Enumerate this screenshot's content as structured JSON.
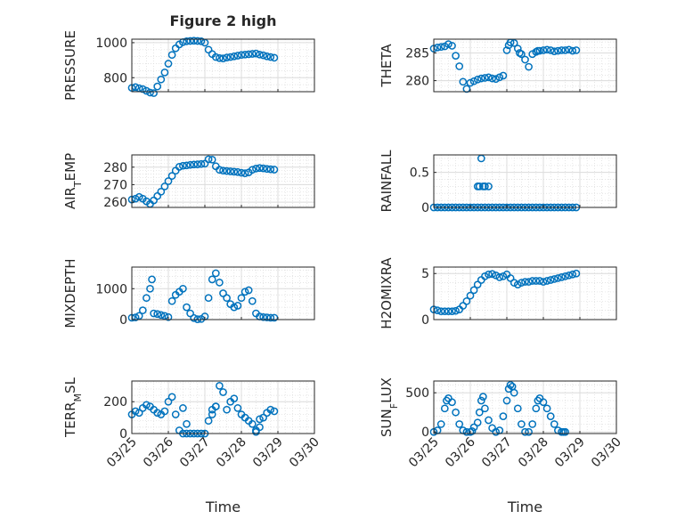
{
  "title": "Figure 2 high",
  "xlabel": "Time",
  "xtick_labels": [
    "03/25",
    "03/26",
    "03/27",
    "03/28",
    "03/29",
    "03/30"
  ],
  "colors": {
    "marker": "#0072BD",
    "grid": "#dcdcdc",
    "axis": "#262626"
  },
  "chart_data": [
    {
      "type": "scatter",
      "ylabel": "PRESSURE",
      "ylabel_parts": [
        [
          "PRESSURE",
          ""
        ]
      ],
      "ylim": [
        720,
        1020
      ],
      "yticks": [
        800,
        1000
      ],
      "ytick_labels": [
        "800",
        "1000"
      ],
      "x": [
        0,
        0.1,
        0.2,
        0.3,
        0.4,
        0.5,
        0.6,
        0.7,
        0.8,
        0.9,
        1.0,
        1.1,
        1.2,
        1.3,
        1.4,
        1.5,
        1.6,
        1.7,
        1.8,
        1.9,
        2.0,
        2.1,
        2.2,
        2.3,
        2.4,
        2.5,
        2.6,
        2.7,
        2.8,
        2.9,
        3.0,
        3.1,
        3.2,
        3.3,
        3.4,
        3.5,
        3.6,
        3.7,
        3.8,
        3.9
      ],
      "y": [
        742,
        746,
        740,
        735,
        725,
        715,
        712,
        750,
        790,
        830,
        880,
        930,
        968,
        990,
        1003,
        1008,
        1010,
        1011,
        1010,
        1008,
        1000,
        960,
        935,
        918,
        912,
        910,
        915,
        918,
        922,
        926,
        930,
        932,
        934,
        936,
        938,
        932,
        928,
        922,
        918,
        914
      ]
    },
    {
      "type": "scatter",
      "ylabel": "THETA",
      "ylabel_parts": [
        [
          "THETA",
          ""
        ]
      ],
      "ylim": [
        278,
        287.5
      ],
      "yticks": [
        280,
        285
      ],
      "ytick_labels": [
        "280",
        "285"
      ],
      "x": [
        0,
        0.1,
        0.2,
        0.3,
        0.4,
        0.5,
        0.6,
        0.7,
        0.8,
        0.9,
        1.0,
        1.1,
        1.2,
        1.3,
        1.4,
        1.5,
        1.6,
        1.7,
        1.8,
        1.9,
        2.0,
        2.05,
        2.1,
        2.2,
        2.3,
        2.35,
        2.4,
        2.5,
        2.6,
        2.7,
        2.8,
        2.85,
        2.9,
        3.0,
        3.1,
        3.2,
        3.3,
        3.4,
        3.5,
        3.6,
        3.7,
        3.8,
        3.9
      ],
      "y": [
        285.8,
        286,
        286.1,
        286.2,
        286.6,
        286.3,
        284.5,
        282.6,
        279.8,
        278.5,
        279.6,
        279.9,
        280.2,
        280.4,
        280.5,
        280.6,
        280.4,
        280.3,
        280.6,
        280.9,
        285.5,
        286.4,
        286.9,
        286.8,
        285.8,
        285.0,
        284.8,
        283.8,
        282.5,
        284.8,
        285.2,
        285.4,
        285.4,
        285.5,
        285.6,
        285.5,
        285.3,
        285.4,
        285.5,
        285.5,
        285.6,
        285.4,
        285.5
      ]
    },
    {
      "type": "scatter",
      "ylabel": "AIR_TEMP",
      "ylabel_parts": [
        [
          "AIR",
          ""
        ],
        [
          "T",
          "sub"
        ],
        [
          "EMP",
          ""
        ]
      ],
      "ylim": [
        257,
        287
      ],
      "yticks": [
        260,
        270,
        280
      ],
      "ytick_labels": [
        "260",
        "270",
        "280"
      ],
      "x": [
        0,
        0.1,
        0.2,
        0.3,
        0.4,
        0.5,
        0.6,
        0.7,
        0.8,
        0.9,
        1.0,
        1.1,
        1.2,
        1.3,
        1.4,
        1.5,
        1.6,
        1.7,
        1.8,
        1.9,
        2.0,
        2.1,
        2.2,
        2.3,
        2.4,
        2.5,
        2.6,
        2.7,
        2.8,
        2.9,
        3.0,
        3.1,
        3.2,
        3.3,
        3.4,
        3.5,
        3.6,
        3.7,
        3.8,
        3.9
      ],
      "y": [
        261.5,
        262,
        263,
        262,
        260.5,
        259,
        261,
        263.5,
        266,
        269,
        272,
        275,
        278,
        280.2,
        280.8,
        281,
        281.3,
        281.5,
        281.6,
        281.8,
        282,
        284.5,
        284.3,
        280.5,
        278.5,
        278.0,
        277.8,
        277.6,
        277.4,
        277.2,
        276.8,
        276.5,
        277.0,
        278.5,
        279.2,
        279.5,
        279.3,
        279.0,
        278.8,
        278.6
      ]
    },
    {
      "type": "scatter",
      "ylabel": "RAINFALL",
      "ylabel_parts": [
        [
          "RAINFALL",
          ""
        ]
      ],
      "ylim": [
        0,
        0.75
      ],
      "yticks": [
        0,
        0.5
      ],
      "ytick_labels": [
        "0",
        "0.5"
      ],
      "x": [
        0,
        0.1,
        0.2,
        0.3,
        0.4,
        0.5,
        0.6,
        0.7,
        0.8,
        0.9,
        1.0,
        1.1,
        1.2,
        1.3,
        1.4,
        1.5,
        1.6,
        1.7,
        1.8,
        1.9,
        2.0,
        2.1,
        2.2,
        2.3,
        2.4,
        2.5,
        2.6,
        2.7,
        2.8,
        2.9,
        3.0,
        3.1,
        3.2,
        3.3,
        3.4,
        3.5,
        3.6,
        3.7,
        3.8,
        3.9,
        1.2,
        1.25,
        1.3,
        1.35,
        1.4,
        1.5
      ],
      "y": [
        0,
        0,
        0,
        0,
        0,
        0,
        0,
        0,
        0,
        0,
        0,
        0,
        0,
        0,
        0,
        0,
        0,
        0,
        0,
        0,
        0,
        0,
        0,
        0,
        0,
        0,
        0,
        0,
        0,
        0,
        0,
        0,
        0,
        0,
        0,
        0,
        0,
        0,
        0,
        0,
        0.3,
        0.3,
        0.7,
        0.3,
        0.3,
        0.3
      ]
    },
    {
      "type": "scatter",
      "ylabel": "MIXDEPTH",
      "ylabel_parts": [
        [
          "MIXDEPTH",
          ""
        ]
      ],
      "ylim": [
        0,
        1700
      ],
      "yticks": [
        0,
        1000
      ],
      "ytick_labels": [
        "0",
        "1000"
      ],
      "x": [
        0,
        0.1,
        0.2,
        0.3,
        0.4,
        0.5,
        0.55,
        0.6,
        0.7,
        0.8,
        0.9,
        1.0,
        1.1,
        1.2,
        1.3,
        1.4,
        1.5,
        1.6,
        1.7,
        1.8,
        1.9,
        2.0,
        2.1,
        2.2,
        2.3,
        2.4,
        2.5,
        2.6,
        2.7,
        2.8,
        2.9,
        3.0,
        3.1,
        3.2,
        3.3,
        3.4,
        3.5,
        3.6,
        3.7,
        3.8,
        3.9
      ],
      "y": [
        60,
        70,
        120,
        300,
        700,
        1000,
        1300,
        200,
        180,
        150,
        120,
        80,
        600,
        800,
        900,
        1000,
        400,
        200,
        50,
        10,
        20,
        100,
        700,
        1300,
        1500,
        1200,
        850,
        700,
        500,
        400,
        450,
        700,
        900,
        950,
        600,
        200,
        100,
        80,
        70,
        60,
        60
      ]
    },
    {
      "type": "scatter",
      "ylabel": "H2OMIXRA",
      "ylabel_parts": [
        [
          "H2OMIXRA",
          ""
        ]
      ],
      "ylim": [
        0,
        5.7
      ],
      "yticks": [
        0,
        5
      ],
      "ytick_labels": [
        "0",
        "5"
      ],
      "x": [
        0,
        0.1,
        0.2,
        0.3,
        0.4,
        0.5,
        0.6,
        0.7,
        0.8,
        0.9,
        1.0,
        1.1,
        1.2,
        1.3,
        1.4,
        1.5,
        1.6,
        1.7,
        1.8,
        1.9,
        2.0,
        2.1,
        2.2,
        2.3,
        2.4,
        2.5,
        2.6,
        2.7,
        2.8,
        2.9,
        3.0,
        3.1,
        3.2,
        3.3,
        3.4,
        3.5,
        3.6,
        3.7,
        3.8,
        3.9
      ],
      "y": [
        1.1,
        1.0,
        0.9,
        0.9,
        0.9,
        0.9,
        0.95,
        1.1,
        1.5,
        2.0,
        2.6,
        3.2,
        3.8,
        4.3,
        4.7,
        4.9,
        4.95,
        4.8,
        4.6,
        4.7,
        4.9,
        4.5,
        4.0,
        3.8,
        4.0,
        4.1,
        4.1,
        4.2,
        4.2,
        4.2,
        4.1,
        4.2,
        4.3,
        4.4,
        4.5,
        4.6,
        4.7,
        4.8,
        4.9,
        5.0
      ]
    },
    {
      "type": "scatter",
      "ylabel": "TERR_MSL",
      "ylabel_parts": [
        [
          "TERR",
          ""
        ],
        [
          "M",
          "sub"
        ],
        [
          "SL",
          ""
        ]
      ],
      "ylim": [
        0,
        330
      ],
      "yticks": [
        0,
        200
      ],
      "ytick_labels": [
        "0",
        "200"
      ],
      "x": [
        0,
        0.1,
        0.2,
        0.3,
        0.4,
        0.5,
        0.6,
        0.7,
        0.8,
        0.9,
        1.0,
        1.1,
        1.2,
        1.3,
        1.4,
        1.5,
        1.6,
        1.7,
        1.8,
        1.9,
        2.0,
        2.1,
        2.2,
        2.3,
        2.4,
        2.5,
        2.6,
        2.7,
        2.8,
        2.9,
        3.0,
        3.1,
        3.2,
        3.3,
        3.4,
        3.5,
        3.6,
        3.7,
        3.8,
        3.9,
        1.4,
        1.5,
        2.2,
        2.3,
        3.4,
        3.5
      ],
      "y": [
        120,
        140,
        130,
        160,
        180,
        170,
        150,
        130,
        120,
        140,
        200,
        230,
        120,
        20,
        0,
        0,
        0,
        0,
        0,
        0,
        0,
        80,
        150,
        170,
        300,
        260,
        150,
        200,
        220,
        160,
        120,
        100,
        80,
        60,
        20,
        40,
        100,
        130,
        150,
        140,
        160,
        60,
        120,
        170,
        10,
        90
      ]
    },
    {
      "type": "scatter",
      "ylabel": "SUN_FLUX",
      "ylabel_parts": [
        [
          "SUN",
          ""
        ],
        [
          "F",
          "sub"
        ],
        [
          "LUX",
          ""
        ]
      ],
      "ylim": [
        -20,
        650
      ],
      "yticks": [
        0,
        500
      ],
      "ytick_labels": [
        "0",
        "500"
      ],
      "x": [
        0,
        0.1,
        0.2,
        0.3,
        0.35,
        0.4,
        0.5,
        0.6,
        0.7,
        0.8,
        0.9,
        1.0,
        1.05,
        1.1,
        1.2,
        1.25,
        1.3,
        1.35,
        1.4,
        1.5,
        1.6,
        1.7,
        1.8,
        1.9,
        2.0,
        2.05,
        2.1,
        2.15,
        2.2,
        2.3,
        2.4,
        2.5,
        2.6,
        2.7,
        2.8,
        2.85,
        2.9,
        3.0,
        3.1,
        3.2,
        3.3,
        3.4,
        3.5,
        3.55,
        3.6
      ],
      "y": [
        0,
        20,
        100,
        300,
        400,
        430,
        380,
        250,
        100,
        20,
        0,
        0,
        10,
        60,
        120,
        250,
        400,
        450,
        300,
        150,
        50,
        0,
        20,
        200,
        400,
        550,
        600,
        580,
        500,
        300,
        100,
        0,
        0,
        100,
        300,
        400,
        430,
        380,
        300,
        200,
        100,
        20,
        0,
        0,
        0
      ]
    }
  ]
}
